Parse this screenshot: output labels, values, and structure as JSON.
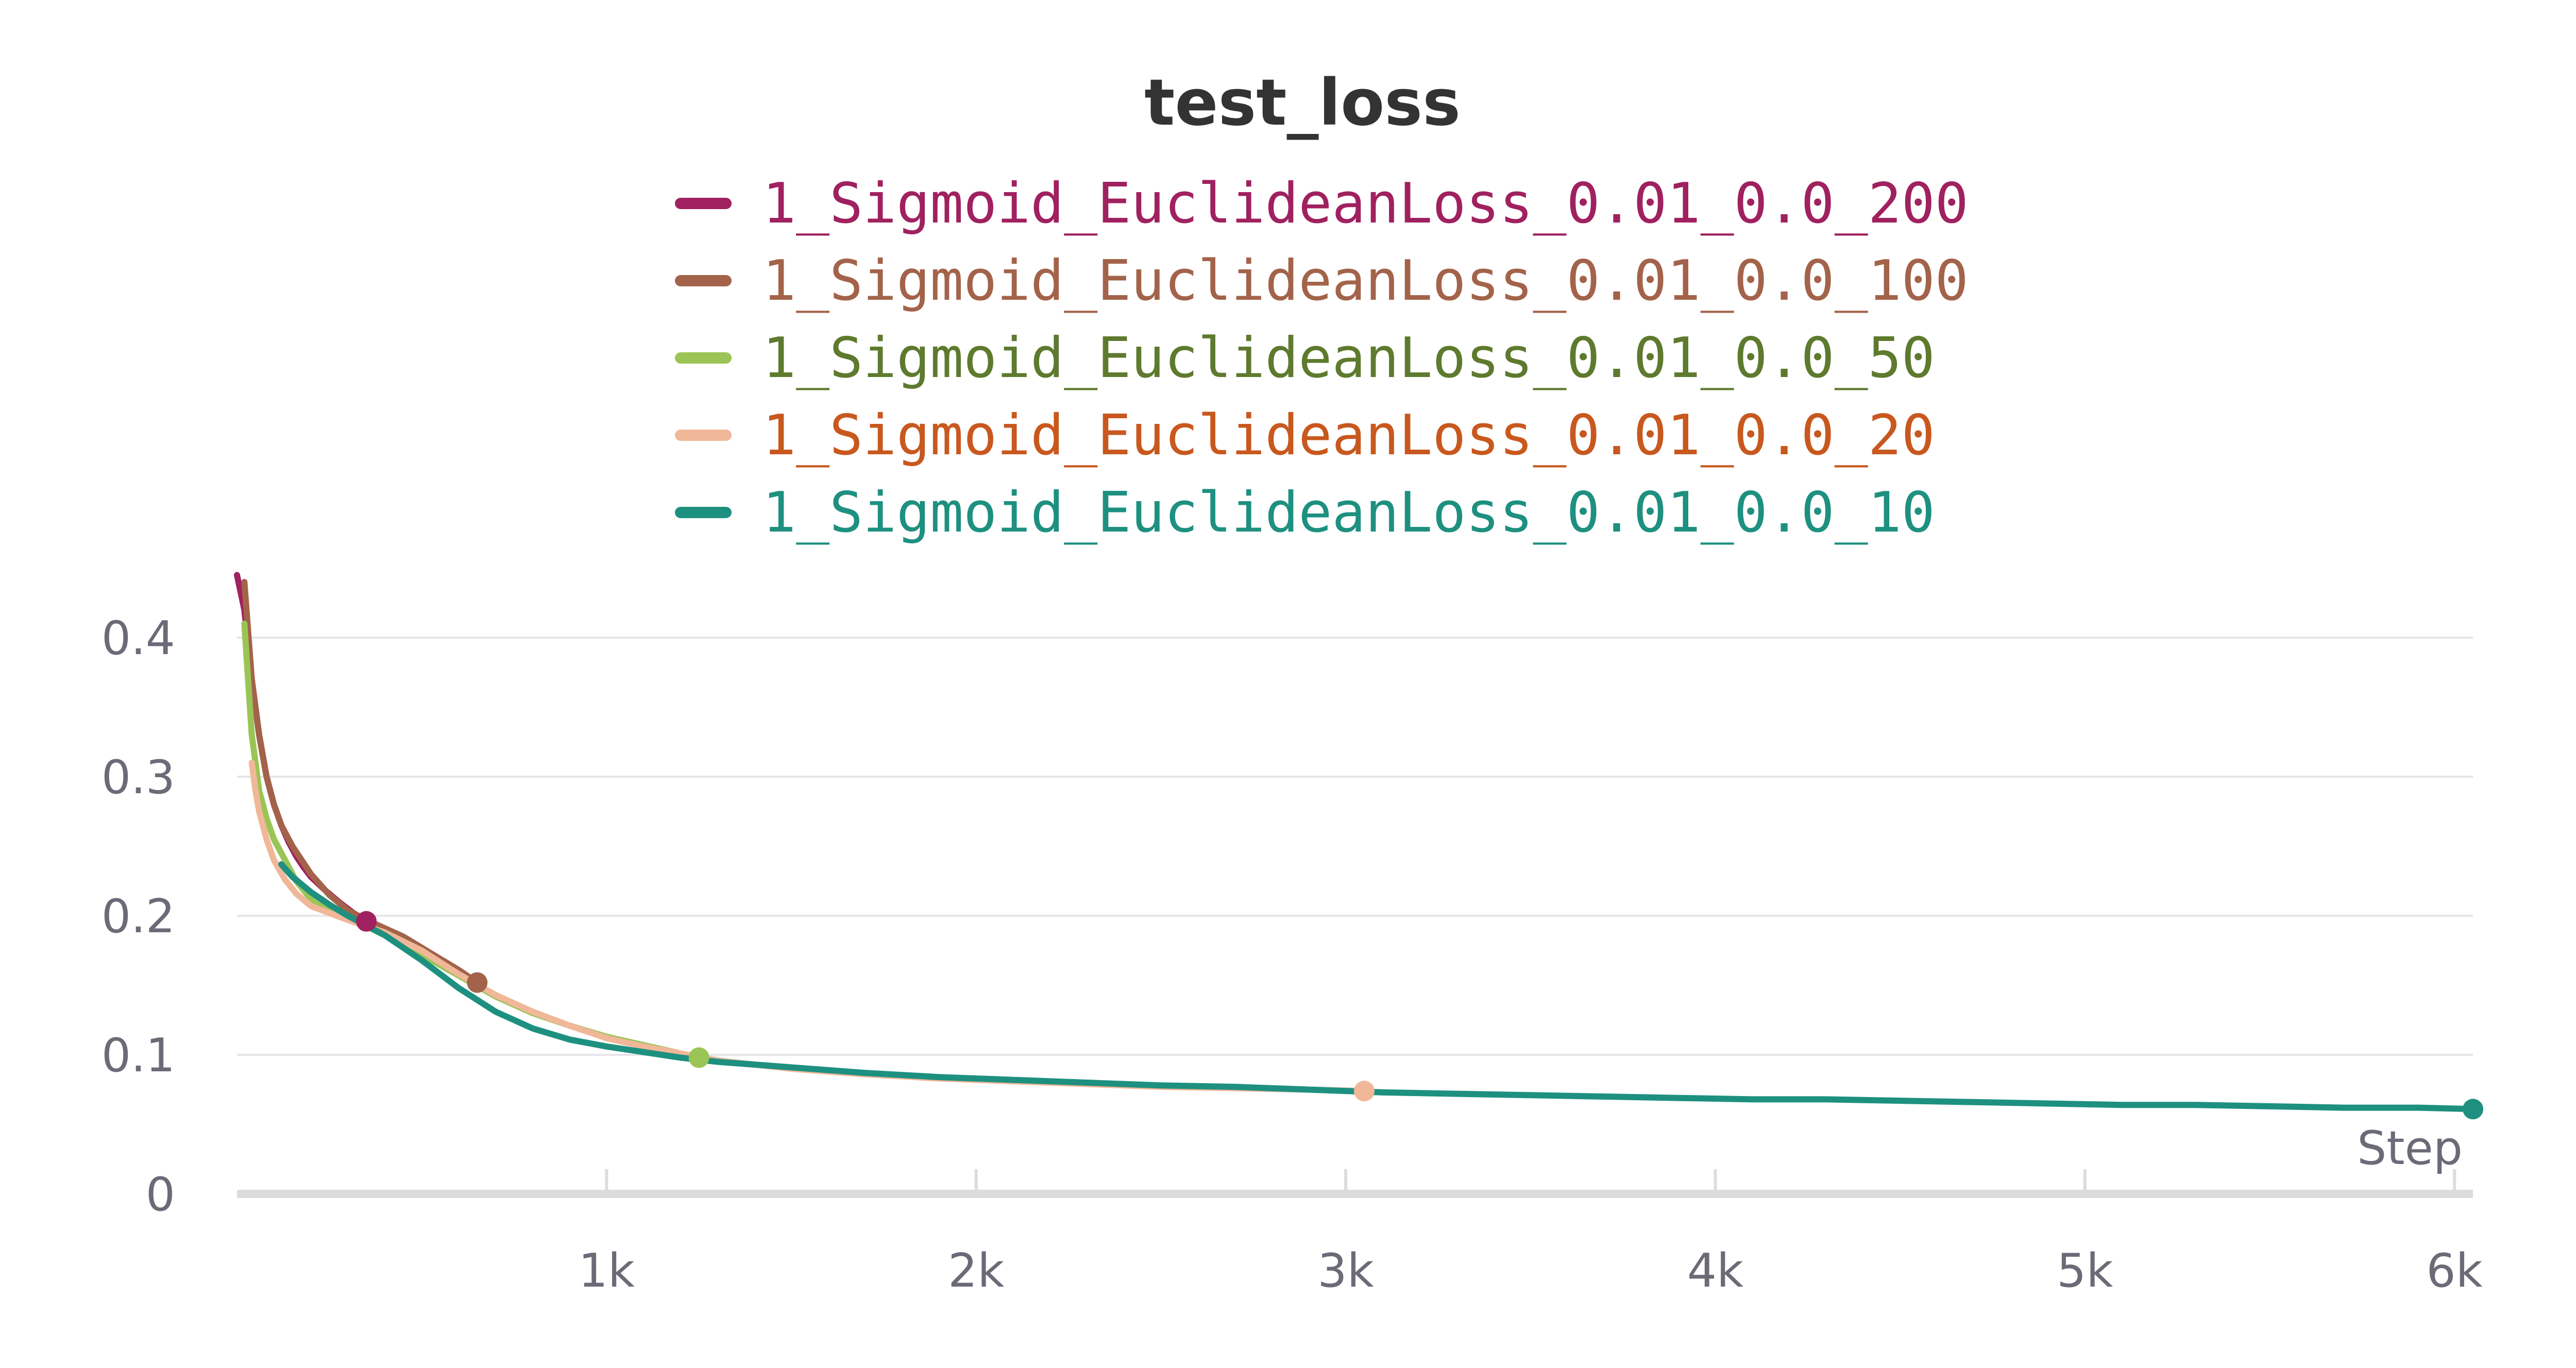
{
  "chart_data": {
    "type": "line",
    "title": "test_loss",
    "xlabel": "Step",
    "ylabel": "",
    "xlim": [
      0,
      6050
    ],
    "ylim": [
      0,
      0.45
    ],
    "x_ticks": [
      {
        "value": 1000,
        "label": "1k"
      },
      {
        "value": 2000,
        "label": "2k"
      },
      {
        "value": 3000,
        "label": "3k"
      },
      {
        "value": 4000,
        "label": "4k"
      },
      {
        "value": 5000,
        "label": "5k"
      },
      {
        "value": 6000,
        "label": "6k"
      }
    ],
    "y_ticks": [
      {
        "value": 0,
        "label": "0"
      },
      {
        "value": 0.1,
        "label": "0.1"
      },
      {
        "value": 0.2,
        "label": "0.2"
      },
      {
        "value": 0.3,
        "label": "0.3"
      },
      {
        "value": 0.4,
        "label": "0.4"
      }
    ],
    "grid": true,
    "legend_position": "top",
    "series": [
      {
        "name": "1_Sigmoid_EuclideanLoss_0.01_0.0_200",
        "color": "#A0215F",
        "text_color": "#A0215F",
        "x": [
          0,
          20,
          40,
          60,
          80,
          100,
          120,
          140,
          160,
          180,
          200,
          240,
          280,
          320,
          350
        ],
        "y": [
          0.445,
          0.42,
          0.37,
          0.33,
          0.3,
          0.28,
          0.265,
          0.253,
          0.243,
          0.235,
          0.228,
          0.218,
          0.209,
          0.201,
          0.196
        ]
      },
      {
        "name": "1_Sigmoid_EuclideanLoss_0.01_0.0_100",
        "color": "#A3634A",
        "text_color": "#A3634A",
        "x": [
          20,
          40,
          60,
          80,
          100,
          120,
          150,
          200,
          250,
          300,
          350,
          400,
          450,
          500,
          550,
          600,
          650
        ],
        "y": [
          0.44,
          0.37,
          0.33,
          0.3,
          0.28,
          0.265,
          0.25,
          0.23,
          0.215,
          0.204,
          0.197,
          0.191,
          0.185,
          0.177,
          0.169,
          0.161,
          0.152
        ]
      },
      {
        "name": "1_Sigmoid_EuclideanLoss_0.01_0.0_50",
        "color": "#9AC556",
        "text_color": "#5E7A2E",
        "x": [
          20,
          30,
          40,
          50,
          60,
          80,
          100,
          130,
          160,
          200,
          260,
          330,
          400,
          500,
          600,
          700,
          800,
          900,
          1000,
          1100,
          1250
        ],
        "y": [
          0.41,
          0.37,
          0.33,
          0.31,
          0.29,
          0.27,
          0.255,
          0.24,
          0.225,
          0.212,
          0.203,
          0.195,
          0.186,
          0.172,
          0.157,
          0.142,
          0.13,
          0.121,
          0.113,
          0.107,
          0.098
        ]
      },
      {
        "name": "1_Sigmoid_EuclideanLoss_0.01_0.0_20",
        "color": "#F0B898",
        "text_color": "#C8581E",
        "x": [
          40,
          50,
          60,
          80,
          100,
          130,
          160,
          200,
          250,
          300,
          400,
          500,
          600,
          700,
          800,
          900,
          1000,
          1100,
          1200,
          1300,
          1400,
          1500,
          1700,
          1900,
          2100,
          2300,
          2500,
          2700,
          2900,
          3050
        ],
        "y": [
          0.31,
          0.29,
          0.275,
          0.255,
          0.24,
          0.226,
          0.216,
          0.207,
          0.202,
          0.197,
          0.188,
          0.175,
          0.158,
          0.143,
          0.131,
          0.121,
          0.112,
          0.106,
          0.101,
          0.096,
          0.093,
          0.09,
          0.086,
          0.083,
          0.081,
          0.079,
          0.077,
          0.076,
          0.075,
          0.074
        ]
      },
      {
        "name": "1_Sigmoid_EuclideanLoss_0.01_0.0_10",
        "color": "#1E9080",
        "text_color": "#1E9080",
        "x": [
          120,
          150,
          200,
          250,
          300,
          350,
          400,
          500,
          600,
          700,
          800,
          900,
          1000,
          1100,
          1200,
          1300,
          1400,
          1500,
          1700,
          1900,
          2100,
          2300,
          2500,
          2700,
          2900,
          3100,
          3300,
          3500,
          3700,
          3900,
          4100,
          4300,
          4500,
          4700,
          4900,
          5100,
          5300,
          5500,
          5700,
          5900,
          6050
        ],
        "y": [
          0.237,
          0.228,
          0.217,
          0.208,
          0.2,
          0.193,
          0.186,
          0.168,
          0.148,
          0.131,
          0.119,
          0.111,
          0.106,
          0.102,
          0.098,
          0.095,
          0.093,
          0.091,
          0.087,
          0.084,
          0.082,
          0.08,
          0.078,
          0.077,
          0.075,
          0.073,
          0.072,
          0.071,
          0.07,
          0.069,
          0.068,
          0.068,
          0.067,
          0.066,
          0.065,
          0.064,
          0.064,
          0.063,
          0.062,
          0.062,
          0.061
        ]
      }
    ]
  }
}
